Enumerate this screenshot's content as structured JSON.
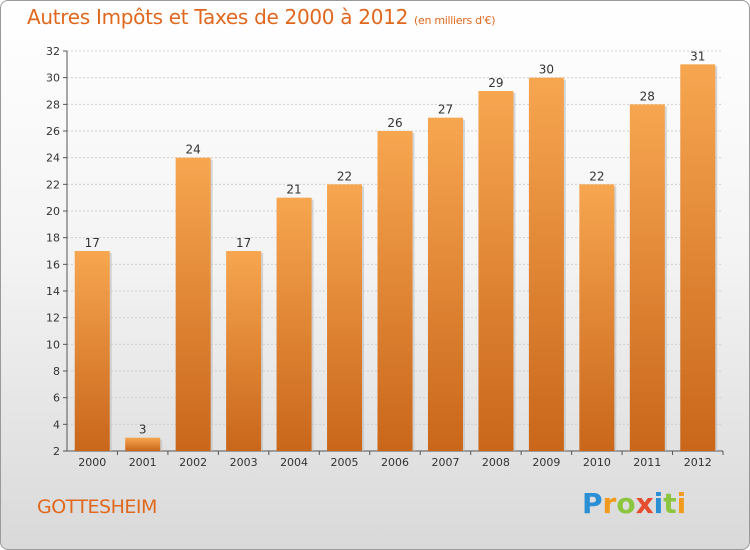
{
  "title": "Autres Impôts et Taxes de 2000 à 2012",
  "unit_note": "(en milliers d'€)",
  "commune": "GOTTESHEIM",
  "logo": {
    "text": "Proxiti",
    "letters": [
      "P",
      "r",
      "o",
      "x",
      "i",
      "t",
      "i"
    ],
    "colors": [
      "#2b8fd6",
      "#f29a1d",
      "#8cc63f",
      "#e64d2e",
      "#2b8fd6",
      "#8cc63f",
      "#f29a1d"
    ]
  },
  "chart_data": {
    "type": "bar",
    "categories": [
      "2000",
      "2001",
      "2002",
      "2003",
      "2004",
      "2005",
      "2006",
      "2007",
      "2008",
      "2009",
      "2010",
      "2011",
      "2012"
    ],
    "values": [
      17,
      3,
      24,
      17,
      21,
      22,
      26,
      27,
      29,
      30,
      22,
      28,
      31
    ],
    "title": "Autres Impôts et Taxes de 2000 à 2012",
    "xlabel": "",
    "ylabel": "",
    "ylim": [
      2,
      32
    ],
    "yticks": [
      2,
      4,
      6,
      8,
      10,
      12,
      14,
      16,
      18,
      20,
      22,
      24,
      26,
      28,
      30,
      32
    ],
    "grid": true,
    "bar_color": "#f0923a"
  }
}
